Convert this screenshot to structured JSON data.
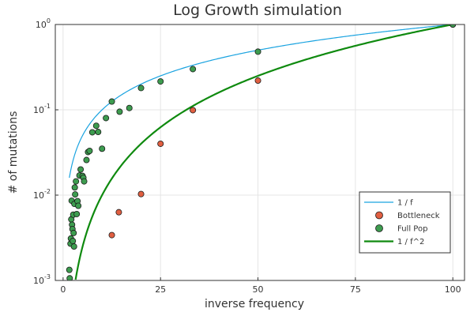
{
  "chart_data": {
    "type": "scatter",
    "title": "Log Growth simulation",
    "xlabel": "inverse frequency",
    "ylabel": "# of mutations",
    "xlim": [
      -2,
      103
    ],
    "ylim": [
      0.001,
      1
    ],
    "yscale": "log",
    "grid": true,
    "legend_position": "bottom-right",
    "x_ticks": [
      {
        "value": 0,
        "label": "0"
      },
      {
        "value": 25,
        "label": "25"
      },
      {
        "value": 50,
        "label": "50"
      },
      {
        "value": 75,
        "label": "75"
      },
      {
        "value": 100,
        "label": "100"
      }
    ],
    "y_ticks": [
      {
        "value": 1,
        "base": "10",
        "exp": "0"
      },
      {
        "value": 0.1,
        "base": "10",
        "exp": "-1"
      },
      {
        "value": 0.01,
        "base": "10",
        "exp": "-2"
      },
      {
        "value": 0.001,
        "base": "10",
        "exp": "-3"
      }
    ],
    "series": [
      {
        "name": "1 / f",
        "kind": "line",
        "color": "#1aa3e0",
        "width": 1.2,
        "function": "inverse",
        "x_range": [
          1.6,
          100
        ]
      },
      {
        "name": "Bottleneck",
        "kind": "scatter",
        "color": "#e15f41",
        "x": [
          12.5,
          14.3,
          20,
          25,
          33.3,
          50,
          100
        ],
        "y": [
          0.0034,
          0.0063,
          0.0103,
          0.04,
          0.099,
          0.22,
          1.0
        ]
      },
      {
        "name": "Full Pop",
        "kind": "scatter",
        "color": "#3d9c4f",
        "x": [
          1.6,
          1.7,
          1.9,
          2.0,
          2.1,
          2.2,
          2.3,
          2.4,
          2.5,
          2.6,
          2.7,
          2.8,
          2.9,
          3.0,
          3.1,
          3.3,
          3.5,
          3.7,
          3.9,
          4.2,
          4.5,
          5.0,
          5.2,
          5.4,
          6.0,
          6.4,
          6.8,
          7.5,
          8.5,
          9.0,
          10,
          11,
          12.5,
          14.5,
          17,
          20,
          25,
          33.3,
          50,
          100
        ],
        "y": [
          0.00133,
          0.00106,
          0.0027,
          0.0031,
          0.0052,
          0.0086,
          0.0045,
          0.004,
          0.0029,
          0.0059,
          0.0036,
          0.0025,
          0.0079,
          0.0123,
          0.0102,
          0.0145,
          0.006,
          0.0085,
          0.0075,
          0.017,
          0.02,
          0.0168,
          0.016,
          0.0145,
          0.0258,
          0.032,
          0.033,
          0.0545,
          0.065,
          0.055,
          0.035,
          0.08,
          0.125,
          0.095,
          0.105,
          0.18,
          0.215,
          0.3,
          0.48,
          1.0
        ]
      },
      {
        "name": "1 / f^2",
        "kind": "line",
        "color": "#0f8a0f",
        "width": 2.2,
        "function": "inverse_square",
        "x_range": [
          3.2,
          100
        ]
      }
    ]
  }
}
